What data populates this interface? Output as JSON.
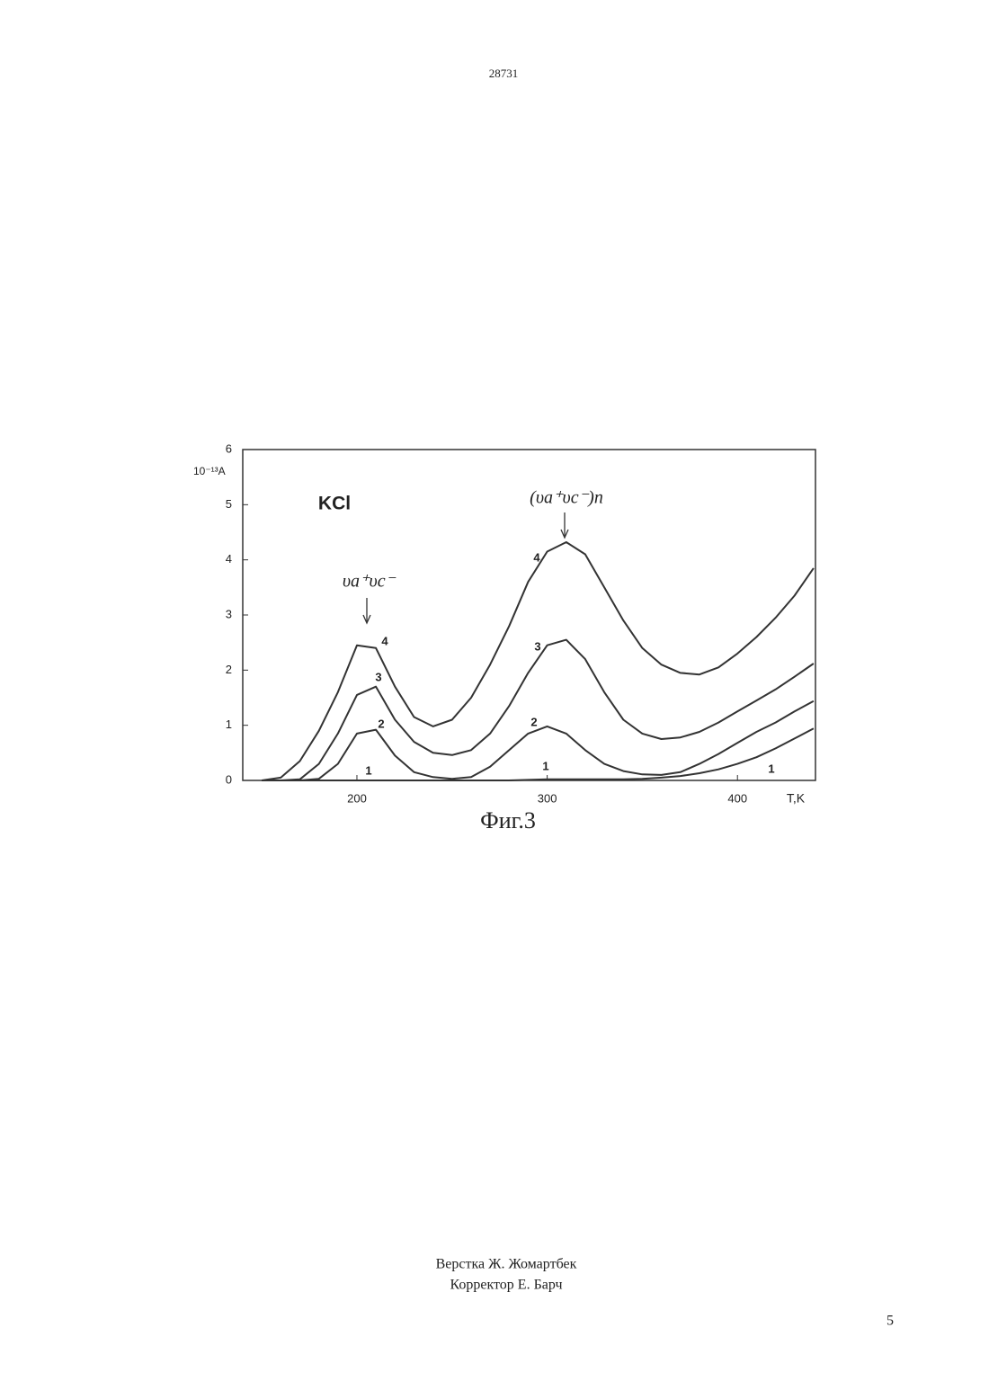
{
  "header": {
    "number": "28731"
  },
  "chart_data": {
    "type": "line",
    "annotations": [
      "KCl",
      "υa⁺υc⁻",
      "(υa⁺υc⁻)n"
    ],
    "y_label": "10⁻¹³A",
    "x_label": "T,K",
    "caption": "Фиг.3",
    "x": [
      150,
      160,
      170,
      180,
      190,
      200,
      210,
      220,
      230,
      240,
      250,
      260,
      270,
      280,
      290,
      300,
      310,
      320,
      330,
      340,
      350,
      360,
      370,
      380,
      390,
      400,
      410,
      420,
      430,
      440
    ],
    "series": [
      {
        "name": "1",
        "color": "#333333",
        "values": [
          0,
          0,
          0,
          0,
          0,
          0,
          0,
          0,
          0,
          0,
          0,
          0,
          0,
          0,
          0.01,
          0.02,
          0.02,
          0.02,
          0.02,
          0.02,
          0.03,
          0.05,
          0.08,
          0.13,
          0.2,
          0.3,
          0.42,
          0.58,
          0.76,
          0.94
        ]
      },
      {
        "name": "2",
        "color": "#333333",
        "values": [
          0,
          0,
          0,
          0.03,
          0.3,
          0.85,
          0.92,
          0.45,
          0.15,
          0.06,
          0.03,
          0.06,
          0.25,
          0.55,
          0.85,
          0.98,
          0.85,
          0.55,
          0.3,
          0.17,
          0.11,
          0.1,
          0.15,
          0.3,
          0.48,
          0.68,
          0.88,
          1.05,
          1.25,
          1.44
        ]
      },
      {
        "name": "3",
        "color": "#333333",
        "values": [
          0,
          0,
          0.02,
          0.3,
          0.85,
          1.55,
          1.7,
          1.1,
          0.7,
          0.5,
          0.46,
          0.55,
          0.85,
          1.35,
          1.95,
          2.45,
          2.55,
          2.2,
          1.6,
          1.1,
          0.85,
          0.75,
          0.78,
          0.88,
          1.05,
          1.25,
          1.45,
          1.65,
          1.88,
          2.12
        ]
      },
      {
        "name": "4",
        "color": "#333333",
        "values": [
          0,
          0.05,
          0.35,
          0.9,
          1.6,
          2.45,
          2.4,
          1.7,
          1.15,
          0.98,
          1.1,
          1.5,
          2.1,
          2.8,
          3.6,
          4.15,
          4.32,
          4.1,
          3.5,
          2.9,
          2.4,
          2.1,
          1.95,
          1.92,
          2.05,
          2.3,
          2.6,
          2.95,
          3.35,
          3.85
        ]
      }
    ],
    "xlim": [
      140,
      441
    ],
    "ylim": [
      0,
      6
    ],
    "xticks": [
      200,
      300,
      400
    ],
    "yticks": [
      0,
      1,
      2,
      3,
      4,
      5,
      6
    ]
  },
  "footer": {
    "lines": [
      "Верстка Ж. Жомартбек",
      "Корректор Е. Барч"
    ],
    "page_number": "5"
  }
}
